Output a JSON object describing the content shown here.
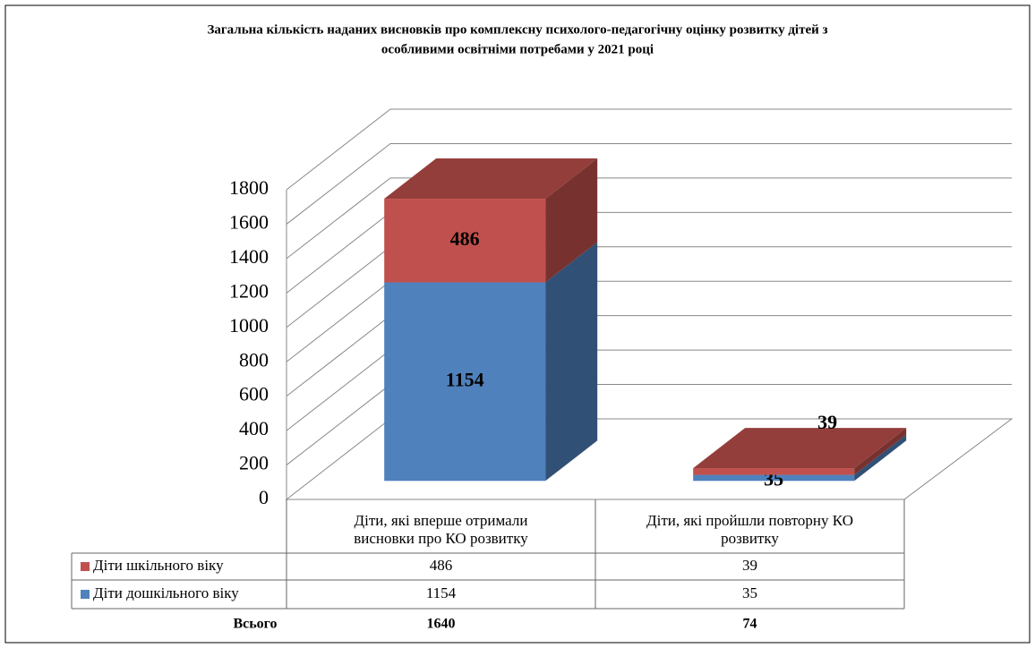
{
  "chart_data": {
    "type": "bar3d_stacked",
    "title": [
      "Загальна кількість наданих висновків про комплексну психолого-педагогічну оцінку розвитку дітей з",
      "особливими  освітніми потребами у 2021 році"
    ],
    "categories": [
      "Діти, які вперше отримали висновки про КО розвитку",
      "Діти, які пройшли повторну КО розвитку"
    ],
    "series": [
      {
        "name": "Діти дошкільного віку",
        "color": "#4f81bd",
        "values": [
          1154,
          35
        ]
      },
      {
        "name": "Діти шкільного віку",
        "color": "#c0504d",
        "values": [
          486,
          39
        ]
      }
    ],
    "ylim": [
      0,
      1800
    ],
    "yticks": [
      0,
      200,
      400,
      600,
      800,
      1000,
      1200,
      1400,
      1600,
      1800
    ],
    "grid": true,
    "totals_label": "Всього",
    "totals": [
      1640,
      74
    ]
  }
}
